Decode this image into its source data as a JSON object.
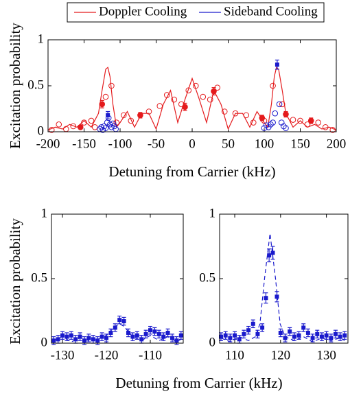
{
  "chart_data": [
    {
      "type": "scatter",
      "xlabel": "Detuning from Carrier (kHz)",
      "ylabel": "Excitation probability",
      "legend": [
        {
          "name": "Doppler Cooling",
          "color": "#e41a1c"
        },
        {
          "name": "Sideband Cooling",
          "color": "#1a1acc"
        }
      ],
      "xlim": [
        -200,
        200
      ],
      "ylim": [
        0,
        1
      ],
      "xticks": [
        -200,
        -150,
        -100,
        -50,
        0,
        50,
        100,
        150,
        200
      ],
      "yticks": [
        0,
        0.5,
        1
      ],
      "series": [
        {
          "style": "line",
          "color": "#e41a1c",
          "x": [
            -200,
            -190,
            -180,
            -170,
            -160,
            -150,
            -140,
            -130,
            -125,
            -120,
            -117,
            -114,
            -110,
            -105,
            -100,
            -90,
            -80,
            -70,
            -60,
            -50,
            -40,
            -30,
            -20,
            -10,
            0,
            10,
            20,
            30,
            40,
            50,
            60,
            70,
            80,
            90,
            100,
            105,
            110,
            114,
            117,
            120,
            125,
            130,
            140,
            150,
            160,
            170,
            180,
            190,
            200
          ],
          "values": [
            0.02,
            0.05,
            0.03,
            0.08,
            0.05,
            0.12,
            0.05,
            0.2,
            0.45,
            0.68,
            0.7,
            0.6,
            0.3,
            0.05,
            0.1,
            0.22,
            0.05,
            0.2,
            0.2,
            0.03,
            0.3,
            0.45,
            0.1,
            0.35,
            0.58,
            0.35,
            0.1,
            0.45,
            0.3,
            0.03,
            0.2,
            0.2,
            0.05,
            0.22,
            0.1,
            0.05,
            0.3,
            0.6,
            0.7,
            0.68,
            0.45,
            0.2,
            0.05,
            0.12,
            0.05,
            0.08,
            0.03,
            0.05,
            0.02
          ]
        },
        {
          "style": "open",
          "color": "#e41a1c",
          "x": [
            -195,
            -185,
            -175,
            -165,
            -150,
            -140,
            -135,
            -120,
            -112,
            -105,
            -95,
            -85,
            -60,
            -45,
            -35,
            -25,
            -15,
            -5,
            5,
            15,
            25,
            35,
            45,
            60,
            75,
            85,
            100,
            112,
            125,
            140,
            150,
            160,
            175,
            185,
            195
          ],
          "values": [
            0.02,
            0.08,
            0.03,
            0.06,
            0.1,
            0.12,
            0.05,
            0.38,
            0.5,
            0.1,
            0.18,
            0.12,
            0.22,
            0.28,
            0.4,
            0.35,
            0.3,
            0.45,
            0.5,
            0.38,
            0.35,
            0.48,
            0.22,
            0.2,
            0.18,
            0.1,
            0.12,
            0.5,
            0.3,
            0.13,
            0.12,
            0.08,
            0.1,
            0.05,
            0.02
          ]
        },
        {
          "style": "open",
          "color": "#1a1acc",
          "x": [
            -128,
            -126,
            -124,
            -122,
            -120,
            -118,
            -116,
            -114,
            -112,
            -110,
            -108,
            -106,
            100,
            103,
            106,
            109,
            112,
            115,
            121,
            124,
            127,
            130
          ],
          "values": [
            0.03,
            0.05,
            0.02,
            0.06,
            0.04,
            0.1,
            0.15,
            0.08,
            0.05,
            0.09,
            0.06,
            0.03,
            0.04,
            0.07,
            0.05,
            0.08,
            0.1,
            0.2,
            0.3,
            0.1,
            0.06,
            0.04
          ]
        },
        {
          "style": "square",
          "color": "#1a1acc",
          "x": [
            -117,
            118
          ],
          "values": [
            0.18,
            0.73
          ],
          "errors": [
            0.04,
            0.05
          ]
        },
        {
          "style": "filled",
          "color": "#e41a1c",
          "x": [
            -155,
            -125,
            -72,
            -10,
            30,
            97,
            130,
            165
          ],
          "values": [
            0.05,
            0.3,
            0.18,
            0.27,
            0.44,
            0.15,
            0.19,
            0.12
          ],
          "errors": [
            0.02,
            0.04,
            0.03,
            0.04,
            0.04,
            0.03,
            0.03,
            0.03
          ]
        }
      ]
    },
    {
      "type": "scatter",
      "xlabel": "Detuning from Carrier (kHz)",
      "ylabel": "Excitation probability",
      "xlim": [
        -132.5,
        -102.5
      ],
      "ylim": [
        0,
        1
      ],
      "xticks": [
        -130,
        -120,
        -110
      ],
      "yticks": [
        0,
        0.5,
        1
      ],
      "series": [
        {
          "style": "dashed",
          "color": "#1a1acc",
          "x": [
            -132,
            -130,
            -128,
            -126,
            -124,
            -122,
            -120,
            -118,
            -117,
            -116,
            -114,
            -112,
            -110,
            -108,
            -106,
            -104,
            -103
          ],
          "values": [
            0.02,
            0.05,
            0.01,
            0.04,
            0.02,
            0.03,
            0.06,
            0.13,
            0.15,
            0.13,
            0.05,
            0.02,
            0.06,
            0.02,
            0.05,
            0.01,
            0.03
          ]
        },
        {
          "style": "square",
          "color": "#1a1acc",
          "x": [
            -132,
            -131,
            -130,
            -129,
            -128,
            -127,
            -126,
            -125,
            -124,
            -123,
            -122,
            -121,
            -120,
            -119,
            -118,
            -117,
            -116,
            -115,
            -114,
            -113,
            -112,
            -111,
            -110,
            -109,
            -108,
            -107,
            -106,
            -105,
            -104,
            -103
          ],
          "values": [
            0.02,
            0.03,
            0.06,
            0.05,
            0.06,
            0.03,
            0.05,
            0.02,
            0.04,
            0.03,
            0.02,
            0.05,
            0.04,
            0.08,
            0.12,
            0.18,
            0.17,
            0.08,
            0.05,
            0.06,
            0.03,
            0.07,
            0.1,
            0.09,
            0.07,
            0.05,
            0.08,
            0.04,
            0.02,
            0.06
          ],
          "errors": [
            0.03,
            0.03,
            0.03,
            0.03,
            0.03,
            0.03,
            0.03,
            0.03,
            0.03,
            0.03,
            0.03,
            0.03,
            0.03,
            0.03,
            0.03,
            0.03,
            0.03,
            0.03,
            0.03,
            0.03,
            0.03,
            0.03,
            0.03,
            0.03,
            0.03,
            0.03,
            0.03,
            0.03,
            0.03,
            0.03
          ]
        }
      ]
    },
    {
      "type": "scatter",
      "xlim": [
        106.7,
        134.7
      ],
      "ylim": [
        0,
        1
      ],
      "xticks": [
        110,
        120,
        130
      ],
      "yticks": [
        0,
        0.5,
        1
      ],
      "series": [
        {
          "style": "dashed",
          "color": "#1a1acc",
          "x": [
            107,
            109,
            111,
            113,
            114.5,
            115.5,
            116.5,
            117.7,
            118.9,
            119.9,
            121,
            123,
            125,
            127,
            129,
            131,
            133,
            134
          ],
          "values": [
            0.04,
            0.01,
            0.05,
            0.02,
            0.05,
            0.15,
            0.5,
            0.85,
            0.5,
            0.15,
            0.05,
            0.02,
            0.05,
            0.01,
            0.04,
            0.02,
            0.04,
            0.02
          ]
        },
        {
          "style": "square",
          "color": "#1a1acc",
          "x": [
            107,
            108,
            109,
            110,
            111,
            112,
            113,
            114,
            115,
            116,
            116.8,
            117.5,
            118.3,
            119.2,
            120,
            121,
            122,
            123,
            124,
            125,
            126,
            127,
            128,
            129,
            130,
            131,
            132,
            133,
            134
          ],
          "values": [
            0.05,
            0.06,
            0.04,
            0.06,
            0.03,
            0.07,
            0.1,
            0.15,
            0.07,
            0.12,
            0.35,
            0.68,
            0.7,
            0.36,
            0.08,
            0.04,
            0.09,
            0.05,
            0.06,
            0.12,
            0.08,
            0.04,
            0.07,
            0.05,
            0.06,
            0.04,
            0.07,
            0.05,
            0.06
          ],
          "errors": [
            0.03,
            0.03,
            0.03,
            0.03,
            0.03,
            0.03,
            0.03,
            0.03,
            0.03,
            0.03,
            0.04,
            0.05,
            0.05,
            0.04,
            0.03,
            0.03,
            0.03,
            0.03,
            0.03,
            0.03,
            0.03,
            0.03,
            0.03,
            0.03,
            0.03,
            0.03,
            0.03,
            0.03,
            0.03
          ]
        }
      ]
    }
  ]
}
